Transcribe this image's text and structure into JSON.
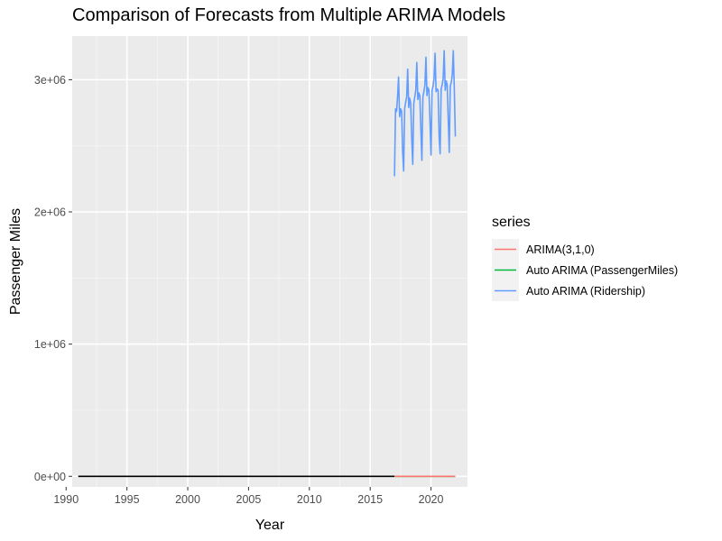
{
  "chart_data": {
    "type": "line",
    "title": "Comparison of Forecasts from Multiple ARIMA Models",
    "xlabel": "Year",
    "ylabel": "Passenger Miles",
    "xlim": [
      1990.5,
      2023
    ],
    "ylim": [
      -80000,
      3330000
    ],
    "x_ticks": [
      1990,
      1995,
      2000,
      2005,
      2010,
      2015,
      2020
    ],
    "x_tick_labels": [
      "1990",
      "1995",
      "2000",
      "2005",
      "2010",
      "2015",
      "2020"
    ],
    "y_ticks": [
      0,
      1000000,
      2000000,
      3000000
    ],
    "y_tick_labels": [
      "0e+00",
      "1e+06",
      "2e+06",
      "3e+06"
    ],
    "grid": true,
    "legend_position": "right",
    "legend_title": "series",
    "observed": {
      "color": "#000000",
      "x": [
        1991.0,
        2017.0
      ],
      "y": [
        0,
        0
      ]
    },
    "series": [
      {
        "name": "ARIMA(3,1,0)",
        "color": "#F8766D",
        "x": [
          2017.0,
          2022.0
        ],
        "y": [
          0,
          0
        ]
      },
      {
        "name": "Auto ARIMA (PassengerMiles)",
        "color": "#00BA38",
        "x": [
          2017.0,
          2022.0
        ],
        "y": [
          0,
          0
        ]
      },
      {
        "name": "Auto ARIMA (Ridership)",
        "color": "#619CFF",
        "x": [
          2017.0,
          2017.083,
          2017.167,
          2017.25,
          2017.333,
          2017.417,
          2017.5,
          2017.583,
          2017.667,
          2017.75,
          2017.833,
          2017.917,
          2018.0,
          2018.083,
          2018.167,
          2018.25,
          2018.333,
          2018.417,
          2018.5,
          2018.583,
          2018.667,
          2018.75,
          2018.833,
          2018.917,
          2019.0,
          2019.083,
          2019.167,
          2019.25,
          2019.333,
          2019.417,
          2019.5,
          2019.583,
          2019.667,
          2019.75,
          2019.833,
          2019.917,
          2020.0,
          2020.083,
          2020.167,
          2020.25,
          2020.333,
          2020.417,
          2020.5,
          2020.583,
          2020.667,
          2020.75,
          2020.833,
          2020.917,
          2021.0,
          2021.083,
          2021.167,
          2021.25,
          2021.333,
          2021.417,
          2021.5,
          2021.583,
          2021.667,
          2021.75,
          2021.833,
          2021.917,
          2022.0
        ],
        "y": [
          2270000,
          2780000,
          2760000,
          2870000,
          3020000,
          2720000,
          2780000,
          2760000,
          2460000,
          2310000,
          2780000,
          2830000,
          2870000,
          3080000,
          2790000,
          2860000,
          2820000,
          2550000,
          2360000,
          2820000,
          2870000,
          2920000,
          3130000,
          2850000,
          2900000,
          2880000,
          2620000,
          2390000,
          2870000,
          2910000,
          2960000,
          3170000,
          2880000,
          2940000,
          2920000,
          2680000,
          2430000,
          2920000,
          2950000,
          3010000,
          3200000,
          2910000,
          2930000,
          2920000,
          2570000,
          2440000,
          2930000,
          2960000,
          3010000,
          3220000,
          2920000,
          2990000,
          2960000,
          2700000,
          2450000,
          2950000,
          2980000,
          3040000,
          3220000,
          2930000,
          2570000
        ]
      }
    ]
  }
}
